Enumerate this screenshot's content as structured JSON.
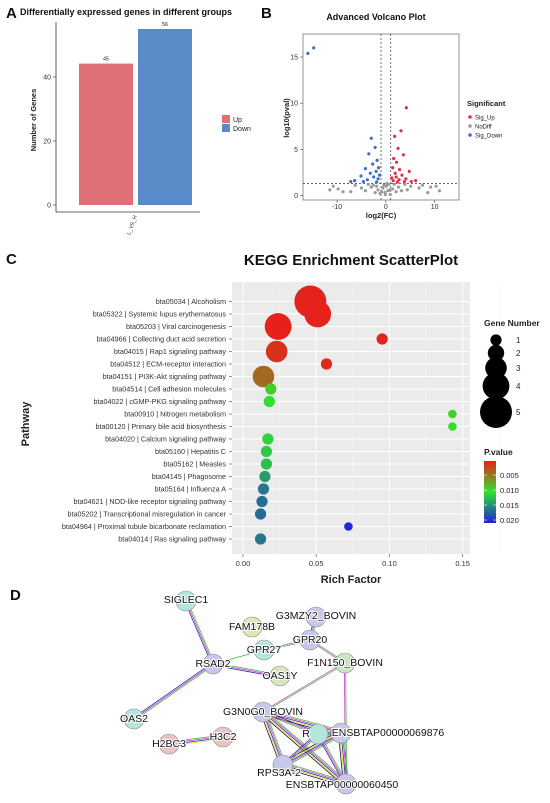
{
  "chart_data": [
    {
      "panel": "A",
      "type": "bar",
      "title": "Differentially expressed genes in different groups",
      "ylabel": "Number of Genes",
      "categories": [
        "L_VS_H"
      ],
      "series": [
        {
          "name": "Up",
          "values": [
            45
          ],
          "color": "#e07078"
        },
        {
          "name": "Down",
          "values": [
            56
          ],
          "color": "#5b8ac9"
        }
      ],
      "value_labels": [
        "45",
        "56"
      ],
      "yticks": [
        "0",
        "20",
        "40"
      ],
      "ylim": [
        0,
        58
      ],
      "legend_position": "right"
    },
    {
      "panel": "B",
      "type": "scatter",
      "title": "Advanced Volcano Plot",
      "xlabel": "log2(FC)",
      "ylabel": "log10(pval)",
      "xticks": [
        "-10",
        "0",
        "10"
      ],
      "yticks": [
        "0",
        "5",
        "10",
        "15"
      ],
      "xlim": [
        -17,
        15
      ],
      "ylim": [
        -0.5,
        17.5
      ],
      "thresholds": {
        "log2fc": [
          -1,
          1
        ],
        "log10p": 1.3
      },
      "legend_title": "Significant",
      "series": [
        {
          "name": "Sig_Up",
          "color": "#e0304a",
          "points": [
            [
              4.2,
              9.5
            ],
            [
              3.1,
              7.0
            ],
            [
              1.8,
              6.4
            ],
            [
              2.5,
              5.1
            ],
            [
              3.6,
              4.4
            ],
            [
              1.6,
              4.0
            ],
            [
              2.2,
              3.6
            ],
            [
              1.4,
              3.0
            ],
            [
              2.8,
              2.8
            ],
            [
              4.8,
              2.6
            ],
            [
              1.9,
              2.4
            ],
            [
              3.3,
              2.2
            ],
            [
              2.1,
              2.0
            ],
            [
              1.2,
              1.9
            ],
            [
              4.1,
              1.8
            ],
            [
              2.7,
              1.7
            ],
            [
              1.5,
              1.6
            ],
            [
              3.8,
              1.5
            ],
            [
              5.2,
              1.5
            ],
            [
              2.4,
              1.45
            ],
            [
              6.1,
              1.6
            ]
          ]
        },
        {
          "name": "NoDiff",
          "color": "#9a9a9a",
          "points": [
            [
              -0.2,
              0.3
            ],
            [
              0.4,
              0.5
            ],
            [
              -0.6,
              0.8
            ],
            [
              0.1,
              1.0
            ],
            [
              0.8,
              0.6
            ],
            [
              -0.9,
              0.4
            ],
            [
              0.6,
              1.2
            ],
            [
              -0.4,
              1.1
            ],
            [
              1.4,
              0.7
            ],
            [
              2.1,
              0.4
            ],
            [
              -1.6,
              0.6
            ],
            [
              -2.2,
              0.3
            ],
            [
              2.6,
              0.9
            ],
            [
              3.2,
              0.5
            ],
            [
              -3.0,
              0.9
            ],
            [
              -2.6,
              1.1
            ],
            [
              4.4,
              0.6
            ],
            [
              -4.2,
              0.5
            ],
            [
              5.1,
              1.0
            ],
            [
              -5.0,
              0.8
            ],
            [
              9.2,
              0.9
            ],
            [
              10.3,
              1.0
            ],
            [
              11.0,
              0.5
            ],
            [
              -9.8,
              0.7
            ],
            [
              -10.8,
              1.0
            ],
            [
              -11.5,
              0.6
            ],
            [
              -8.8,
              0.4
            ],
            [
              8.6,
              0.3
            ],
            [
              -6.3,
              1.1
            ],
            [
              6.8,
              0.8
            ],
            [
              -7.2,
              0.4
            ],
            [
              7.5,
              1.1
            ],
            [
              0.2,
              1.3
            ],
            [
              -0.1,
              0.1
            ],
            [
              0.9,
              0.1
            ],
            [
              -1.2,
              0.2
            ],
            [
              1.7,
              1.2
            ],
            [
              -1.9,
              1.0
            ],
            [
              3.9,
              1.2
            ],
            [
              -3.6,
              1.2
            ]
          ]
        },
        {
          "name": "Sig_Down",
          "color": "#3a6fc6",
          "points": [
            [
              -16.0,
              15.4
            ],
            [
              -14.8,
              16.0
            ],
            [
              -3.0,
              6.2
            ],
            [
              -2.2,
              5.2
            ],
            [
              -3.5,
              4.5
            ],
            [
              -1.8,
              3.8
            ],
            [
              -2.7,
              3.4
            ],
            [
              -1.5,
              3.0
            ],
            [
              -4.2,
              2.9
            ],
            [
              -2.0,
              2.6
            ],
            [
              -3.2,
              2.4
            ],
            [
              -1.3,
              2.2
            ],
            [
              -5.1,
              2.1
            ],
            [
              -2.5,
              2.0
            ],
            [
              -1.6,
              1.8
            ],
            [
              -3.8,
              1.7
            ],
            [
              -6.4,
              1.6
            ],
            [
              -4.6,
              1.5
            ],
            [
              -1.9,
              1.45
            ],
            [
              -7.2,
              1.5
            ]
          ]
        }
      ],
      "legend_position": "right"
    },
    {
      "panel": "C",
      "type": "scatter",
      "title": "KEGG Enrichment ScatterPlot",
      "xlabel": "Rich Factor",
      "ylabel": "Pathway",
      "xticks": [
        0.0,
        0.05,
        0.1,
        0.15
      ],
      "xtick_labels": [
        "0.00",
        "0.05",
        "0.10",
        "0.15"
      ],
      "xlim": [
        -0.0075,
        0.155
      ],
      "categories": [
        "bta05034 | Alcoholism",
        "bta05322 | Systemic lupus erythematosus",
        "bta05203 | Viral carcinogenesis",
        "bta04966 | Collecting duct acid secretion",
        "bta04015 | Rap1 signaling pathway",
        "bta04512 | ECM-receptor interaction",
        "bta04151 | PI3K-Akt signaling pathway",
        "bta04514 | Cell adhesion molecules",
        "bta04022 | cGMP-PKG signaling pathway",
        "bta00910 | Nitrogen metabolism",
        "bta00120 | Primary bile acid biosynthesis",
        "bta04020 | Calcium signaling pathway",
        "bta05160 | Hepatitis C",
        "bta05162 | Measles",
        "bta04145 | Phagosome",
        "bta05164 | Influenza A",
        "bta04621 | NOD-like receptor signaling pathway",
        "bta05202 | Transcriptional misregulation in cancer",
        "bta04964 | Proximal tubule bicarbonate reclamation",
        "bta04014 | Ras signaling pathway"
      ],
      "rich_factor": [
        0.046,
        0.051,
        0.024,
        0.095,
        0.023,
        0.057,
        0.014,
        0.019,
        0.018,
        0.143,
        0.143,
        0.017,
        0.016,
        0.016,
        0.015,
        0.014,
        0.013,
        0.012,
        0.072,
        0.012
      ],
      "gene_number": [
        5,
        4,
        4,
        1,
        3,
        1,
        3,
        1,
        1,
        0.5,
        0.5,
        1,
        1,
        1,
        1,
        1,
        1,
        1,
        0.5,
        1
      ],
      "p_value": [
        0.0005,
        0.0004,
        0.0003,
        0.0006,
        0.0012,
        0.0008,
        0.0042,
        0.0095,
        0.0105,
        0.0098,
        0.0102,
        0.0115,
        0.012,
        0.0125,
        0.0145,
        0.0165,
        0.0168,
        0.017,
        0.0205,
        0.0165
      ],
      "size_legend_title": "Gene Number",
      "size_legend": [
        "1",
        "2",
        "3",
        "4",
        "5"
      ],
      "color_legend_title": "P.value",
      "color_legend_ticks": [
        "0.005",
        "0.010",
        "0.015",
        "0.020"
      ],
      "color_scale": [
        "#e8201c",
        "#2ee22e",
        "#2020d8"
      ]
    },
    {
      "panel": "D",
      "type": "network",
      "nodes": [
        {
          "id": "SIGLEC1",
          "label": "SIGLEC1",
          "color": "#b4e6de"
        },
        {
          "id": "G3MZY2",
          "label": "G3MZY2_BOVIN",
          "color": "#c8c8ea"
        },
        {
          "id": "FAM178B",
          "label": "FAM178B",
          "color": "#e4e4b4"
        },
        {
          "id": "GPR20",
          "label": "GPR20",
          "color": "#c8c8ea"
        },
        {
          "id": "GPR27",
          "label": "GPR27",
          "color": "#b4e6de"
        },
        {
          "id": "RSAD2",
          "label": "RSAD2",
          "color": "#c8c8ea"
        },
        {
          "id": "F1N150",
          "label": "F1N150_BOVIN",
          "color": "#c8e6c0"
        },
        {
          "id": "OAS1Y",
          "label": "OAS1Y",
          "color": "#d8e6c0"
        },
        {
          "id": "G3N0G0",
          "label": "G3N0G0_BOVIN",
          "color": "#c8c8ea"
        },
        {
          "id": "OAS2",
          "label": "OAS2",
          "color": "#b4e6de"
        },
        {
          "id": "ENSBTAP69876",
          "label": "ENSBTAP00000069876",
          "color": "#c8c8ea"
        },
        {
          "id": "H2BC3",
          "label": "H2BC3",
          "color": "#e8c4c4"
        },
        {
          "id": "H3C2",
          "label": "H3C2",
          "color": "#e8c4c4"
        },
        {
          "id": "R",
          "label": "R",
          "color": "#b4e6de"
        },
        {
          "id": "RPS3A2",
          "label": "RPS3A-2",
          "color": "#c8c8ea"
        },
        {
          "id": "ENSBTAP60450",
          "label": "ENSBTAP00000060450",
          "color": "#c8c8ea"
        }
      ]
    }
  ],
  "panel_labels": [
    "A",
    "B",
    "C",
    "D"
  ],
  "colors": {
    "up": "#e07078",
    "down": "#5b8ac9",
    "sig_up": "#e0304a",
    "nodiff": "#9a9a9a",
    "sig_down": "#3a6fc6",
    "kegg_panel_bg": "#ebebeb",
    "gridline": "#ffffff"
  }
}
